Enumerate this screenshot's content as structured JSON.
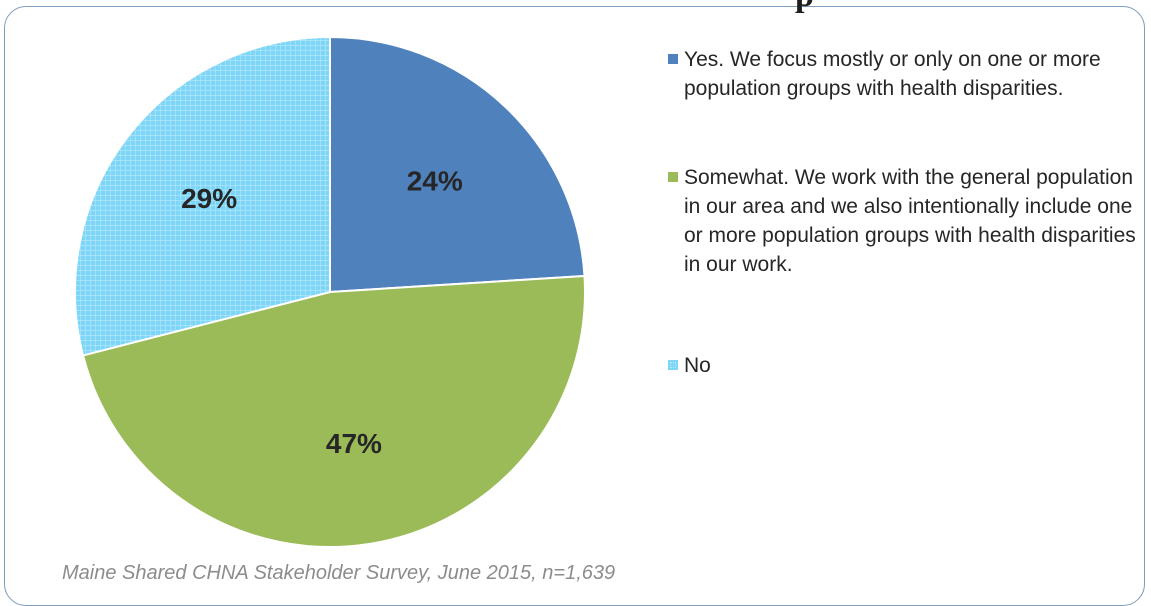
{
  "title_fragment": "p",
  "caption": "Maine Shared CHNA Stakeholder Survey, June 2015, n=1,639",
  "colors": {
    "yes": "#4f81bd",
    "somewhat": "#9bbb59",
    "no": "#7dd6f7",
    "no_hatch": "#b8e9fb",
    "border": "#7f9fbf"
  },
  "chart_data": {
    "type": "pie",
    "categories": [
      "Yes. We focus mostly or only on one or more population groups with health disparities.",
      "Somewhat. We work with the general population in our area and we also intentionally include one or more population groups with health disparities in our work.",
      "No"
    ],
    "values": [
      24,
      47,
      29
    ],
    "value_labels": [
      "24%",
      "47%",
      "29%"
    ],
    "legend_position": "right"
  }
}
